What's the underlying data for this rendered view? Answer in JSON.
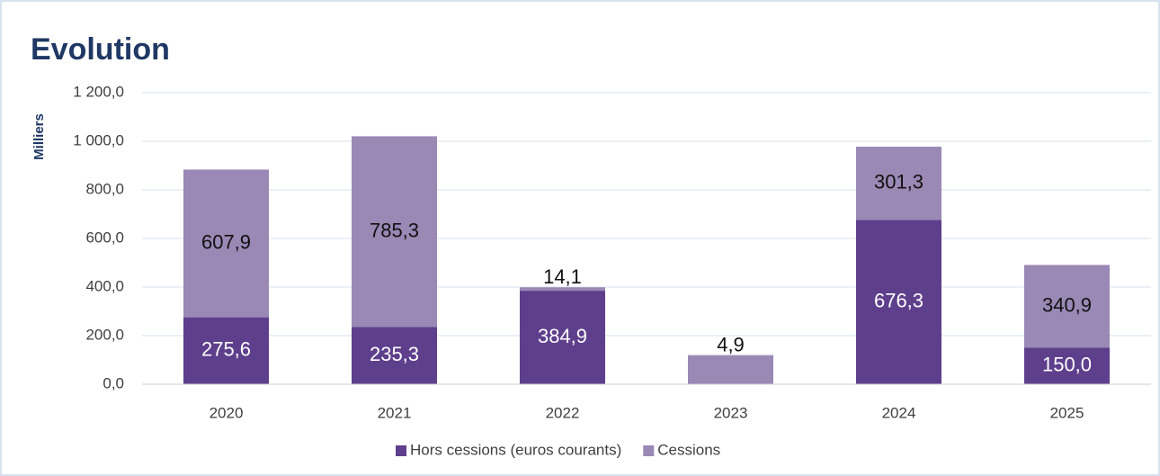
{
  "chart_data": {
    "type": "stacked_bar",
    "title": "Evolution",
    "y_axis_label": "Milliers",
    "categories": [
      "2020",
      "2021",
      "2022",
      "2023",
      "2024",
      "2025"
    ],
    "series": [
      {
        "name": "Hors cessions (euros courants)",
        "color": "#5e3f8c",
        "point_colors": [
          "#5e3f8c",
          "#5e3f8c",
          "#5e3f8c",
          "#9a88b5",
          "#5e3f8c",
          "#5e3f8c"
        ],
        "values": [
          275.6,
          235.3,
          384.9,
          115.1,
          676.3,
          150.0
        ],
        "value_labels": [
          "275,6",
          "235,3",
          "384,9",
          null,
          "676,3",
          "150,0"
        ]
      },
      {
        "name": "Cessions",
        "color": "#9a88b5",
        "values": [
          607.9,
          785.3,
          14.1,
          4.9,
          301.3,
          340.9
        ],
        "value_labels": [
          "607,9",
          "785,3",
          "14,1",
          "4,9",
          "301,3",
          "340,9"
        ]
      }
    ],
    "ylim": [
      0,
      1200
    ],
    "yticks": [
      {
        "value": 0,
        "label": "0,0"
      },
      {
        "value": 200,
        "label": "200,0"
      },
      {
        "value": 400,
        "label": "400,0"
      },
      {
        "value": 600,
        "label": "600,0"
      },
      {
        "value": 800,
        "label": "800,0"
      },
      {
        "value": 1000,
        "label": "1 000,0"
      },
      {
        "value": 1200,
        "label": "1 200,0"
      }
    ],
    "grid": true,
    "legend": "bottom"
  }
}
